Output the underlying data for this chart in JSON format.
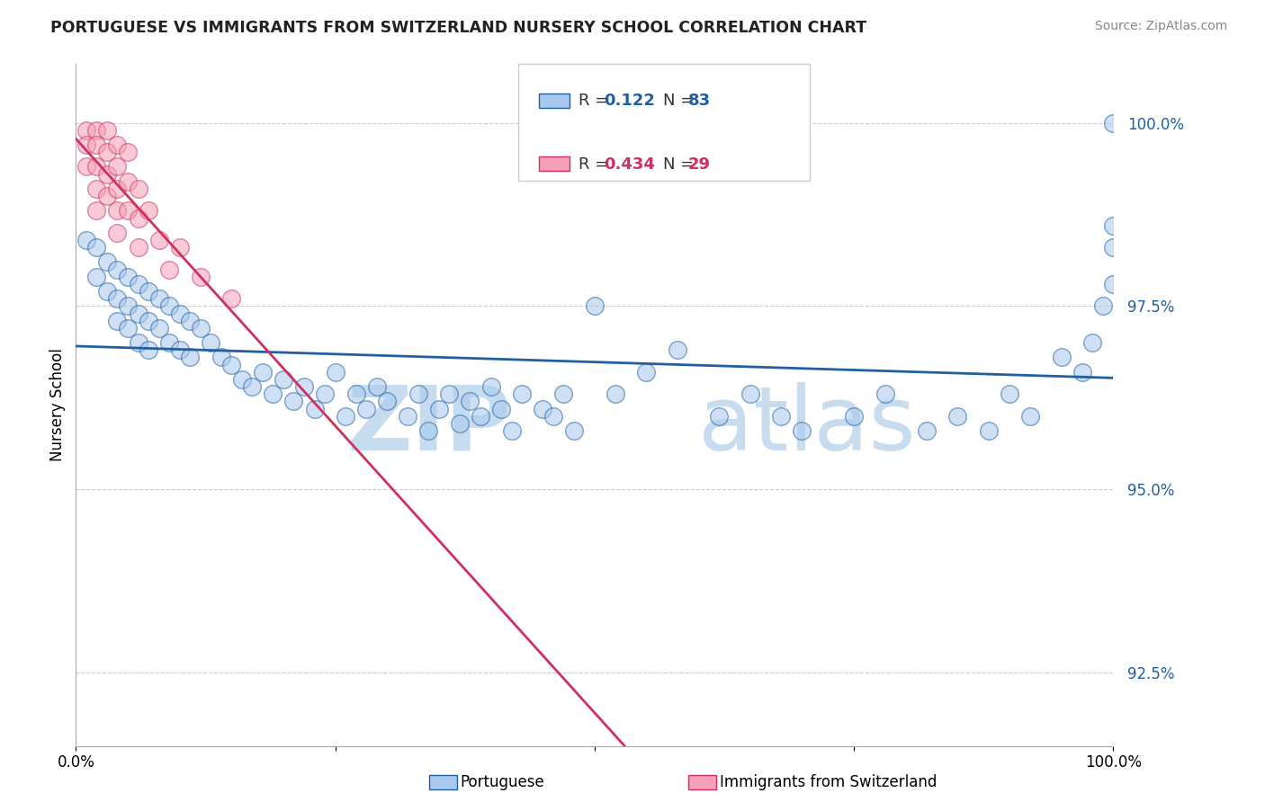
{
  "title": "PORTUGUESE VS IMMIGRANTS FROM SWITZERLAND NURSERY SCHOOL CORRELATION CHART",
  "source": "Source: ZipAtlas.com",
  "ylabel": "Nursery School",
  "xlim": [
    0.0,
    1.0
  ],
  "ylim": [
    0.915,
    1.008
  ],
  "yticks": [
    0.925,
    0.95,
    0.975,
    1.0
  ],
  "ytick_labels": [
    "92.5%",
    "95.0%",
    "97.5%",
    "100.0%"
  ],
  "xticks": [
    0.0,
    0.25,
    0.5,
    0.75,
    1.0
  ],
  "xtick_labels": [
    "0.0%",
    "",
    "",
    "",
    "100.0%"
  ],
  "blue_color": "#A8C8EE",
  "pink_color": "#F4A0B8",
  "blue_line_color": "#2060A0",
  "pink_line_color": "#D03060",
  "blue_R": "0.122",
  "blue_N": "83",
  "pink_R": "0.434",
  "pink_N": "29",
  "blue_x": [
    0.01,
    0.02,
    0.02,
    0.03,
    0.03,
    0.04,
    0.04,
    0.04,
    0.05,
    0.05,
    0.05,
    0.06,
    0.06,
    0.06,
    0.07,
    0.07,
    0.07,
    0.08,
    0.08,
    0.09,
    0.09,
    0.1,
    0.1,
    0.11,
    0.11,
    0.12,
    0.13,
    0.14,
    0.15,
    0.16,
    0.17,
    0.18,
    0.19,
    0.2,
    0.21,
    0.22,
    0.23,
    0.24,
    0.25,
    0.26,
    0.27,
    0.28,
    0.29,
    0.3,
    0.32,
    0.33,
    0.34,
    0.35,
    0.36,
    0.37,
    0.38,
    0.39,
    0.4,
    0.41,
    0.42,
    0.43,
    0.45,
    0.46,
    0.47,
    0.48,
    0.5,
    0.52,
    0.55,
    0.58,
    0.62,
    0.65,
    0.68,
    0.7,
    0.75,
    0.78,
    0.82,
    0.85,
    0.88,
    0.9,
    0.92,
    0.95,
    0.97,
    0.98,
    0.99,
    1.0,
    1.0,
    1.0,
    1.0
  ],
  "blue_y": [
    0.984,
    0.983,
    0.979,
    0.981,
    0.977,
    0.98,
    0.976,
    0.973,
    0.979,
    0.975,
    0.972,
    0.978,
    0.974,
    0.97,
    0.977,
    0.973,
    0.969,
    0.976,
    0.972,
    0.975,
    0.97,
    0.974,
    0.969,
    0.973,
    0.968,
    0.972,
    0.97,
    0.968,
    0.967,
    0.965,
    0.964,
    0.966,
    0.963,
    0.965,
    0.962,
    0.964,
    0.961,
    0.963,
    0.966,
    0.96,
    0.963,
    0.961,
    0.964,
    0.962,
    0.96,
    0.963,
    0.958,
    0.961,
    0.963,
    0.959,
    0.962,
    0.96,
    0.964,
    0.961,
    0.958,
    0.963,
    0.961,
    0.96,
    0.963,
    0.958,
    0.975,
    0.963,
    0.966,
    0.969,
    0.96,
    0.963,
    0.96,
    0.958,
    0.96,
    0.963,
    0.958,
    0.96,
    0.958,
    0.963,
    0.96,
    0.968,
    0.966,
    0.97,
    0.975,
    0.978,
    0.983,
    0.986,
    1.0
  ],
  "pink_x": [
    0.01,
    0.01,
    0.01,
    0.02,
    0.02,
    0.02,
    0.02,
    0.02,
    0.03,
    0.03,
    0.03,
    0.03,
    0.04,
    0.04,
    0.04,
    0.04,
    0.04,
    0.05,
    0.05,
    0.05,
    0.06,
    0.06,
    0.06,
    0.07,
    0.08,
    0.09,
    0.1,
    0.12,
    0.15
  ],
  "pink_y": [
    0.999,
    0.997,
    0.994,
    0.999,
    0.997,
    0.994,
    0.991,
    0.988,
    0.999,
    0.996,
    0.993,
    0.99,
    0.997,
    0.994,
    0.991,
    0.988,
    0.985,
    0.996,
    0.992,
    0.988,
    0.991,
    0.987,
    0.983,
    0.988,
    0.984,
    0.98,
    0.983,
    0.979,
    0.976
  ]
}
